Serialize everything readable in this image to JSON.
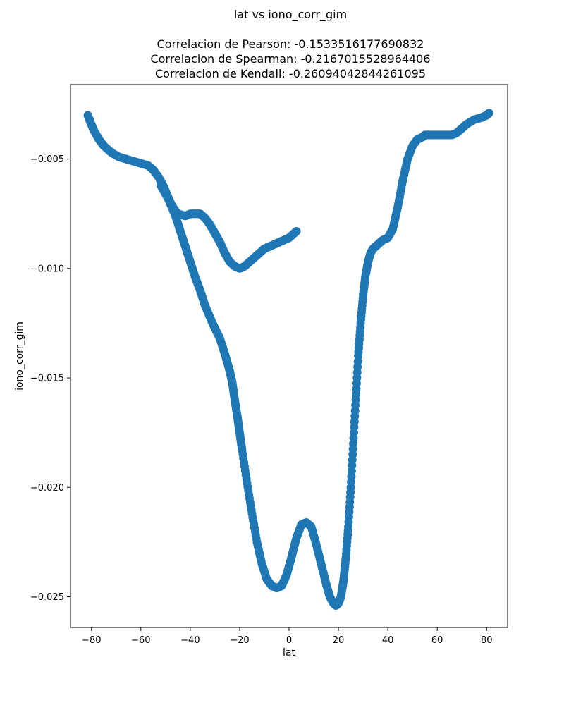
{
  "chart_data": {
    "type": "scatter",
    "title": "lat vs iono_corr_gim",
    "subtitle_lines": [
      "Correlacion de Pearson: -0.1533516177690832",
      "Correlacion de Spearman: -0.2167015528964406",
      "Correlacion de Kendall: -0.26094042844261095"
    ],
    "xlabel": "lat",
    "ylabel": "iono_corr_gim",
    "xlim": [
      -88.5,
      88.5
    ],
    "ylim": [
      -0.0264,
      -0.0016
    ],
    "xticks": [
      -80,
      -60,
      -40,
      -20,
      0,
      20,
      40,
      60,
      80
    ],
    "xtick_labels": [
      "−80",
      "−60",
      "−40",
      "−20",
      "0",
      "20",
      "40",
      "60",
      "80"
    ],
    "yticks": [
      -0.025,
      -0.02,
      -0.015,
      -0.01,
      -0.005
    ],
    "ytick_labels": [
      "−0.025",
      "−0.020",
      "−0.015",
      "−0.010",
      "−0.005"
    ],
    "color": "#1f77b4",
    "series": [
      {
        "x": [
          -81.5,
          -80.5,
          -79,
          -77,
          -75,
          -72,
          -69,
          -66,
          -63,
          -60,
          -57,
          -55,
          -53,
          -51,
          -49.5,
          -48,
          -46.5,
          -45,
          -42,
          -40,
          -38,
          -36,
          -34,
          -32,
          -30,
          -28,
          -26,
          -24,
          -22,
          -20,
          -18,
          -16,
          -14,
          -12,
          -10,
          -8,
          -6,
          -4,
          -2,
          0,
          2,
          3
        ],
        "y": [
          -0.003,
          -0.0033,
          -0.0037,
          -0.0041,
          -0.0044,
          -0.0047,
          -0.0049,
          -0.005,
          -0.0051,
          -0.0052,
          -0.0053,
          -0.0055,
          -0.0058,
          -0.0062,
          -0.0066,
          -0.007,
          -0.0073,
          -0.0075,
          -0.0076,
          -0.0075,
          -0.0075,
          -0.0075,
          -0.0077,
          -0.008,
          -0.0084,
          -0.0088,
          -0.0093,
          -0.0097,
          -0.0099,
          -0.01,
          -0.0099,
          -0.0097,
          -0.0095,
          -0.0093,
          -0.0091,
          -0.009,
          -0.0089,
          -0.0088,
          -0.0087,
          -0.0086,
          -0.0084,
          -0.0083
        ]
      },
      {
        "x": [
          -52,
          -49,
          -46,
          -44,
          -42,
          -40,
          -38,
          -36,
          -34,
          -31,
          -28,
          -26,
          -24,
          -23,
          -22,
          -21,
          -20,
          -19,
          -17,
          -15,
          -13,
          -11,
          -9,
          -7,
          -5,
          -3,
          -1,
          1,
          3,
          5,
          7,
          9,
          11,
          13,
          15,
          16.5,
          18,
          19,
          20,
          21,
          22,
          23,
          24,
          25,
          26,
          27,
          28,
          29,
          30,
          31,
          32,
          33,
          34,
          35,
          36,
          37,
          38,
          40,
          42,
          44,
          46,
          48,
          50,
          52,
          54,
          55,
          57,
          60,
          63,
          66,
          68,
          70,
          72,
          75,
          78,
          80,
          81
        ],
        "y": [
          -0.0062,
          -0.0068,
          -0.0076,
          -0.0083,
          -0.009,
          -0.0097,
          -0.0104,
          -0.011,
          -0.0117,
          -0.0125,
          -0.0132,
          -0.0139,
          -0.0147,
          -0.0152,
          -0.016,
          -0.0167,
          -0.0175,
          -0.0183,
          -0.0198,
          -0.0212,
          -0.0225,
          -0.0235,
          -0.0242,
          -0.0245,
          -0.0246,
          -0.0245,
          -0.024,
          -0.0232,
          -0.0223,
          -0.0217,
          -0.0216,
          -0.0218,
          -0.0226,
          -0.0235,
          -0.0244,
          -0.025,
          -0.0253,
          -0.0254,
          -0.0253,
          -0.025,
          -0.0243,
          -0.0232,
          -0.0218,
          -0.02,
          -0.018,
          -0.016,
          -0.014,
          -0.0125,
          -0.0112,
          -0.0103,
          -0.0097,
          -0.0093,
          -0.0091,
          -0.009,
          -0.0089,
          -0.0088,
          -0.0087,
          -0.0086,
          -0.0082,
          -0.0072,
          -0.006,
          -0.005,
          -0.0044,
          -0.0041,
          -0.004,
          -0.0039,
          -0.0039,
          -0.0039,
          -0.0039,
          -0.0039,
          -0.0038,
          -0.0036,
          -0.0034,
          -0.0032,
          -0.0031,
          -0.003,
          -0.0029
        ]
      }
    ]
  }
}
